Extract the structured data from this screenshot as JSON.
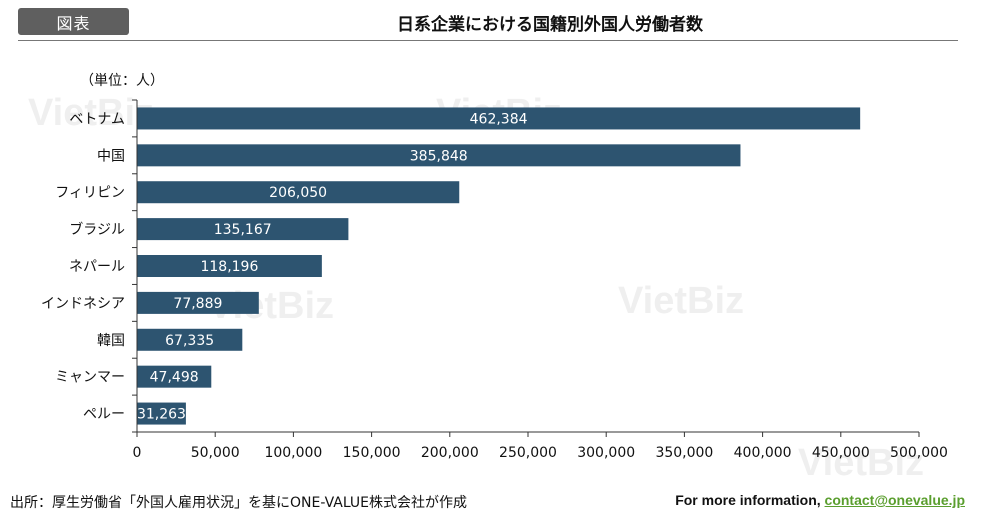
{
  "header": {
    "tag": "図表",
    "title": "日系企業における国籍別外国人労働者数"
  },
  "unit_label": "（単位：人）",
  "watermark": "VietBiz",
  "chart_data": {
    "type": "bar",
    "orientation": "horizontal",
    "categories": [
      "ベトナム",
      "中国",
      "フィリピン",
      "ブラジル",
      "ネパール",
      "インドネシア",
      "韓国",
      "ミャンマー",
      "ペルー"
    ],
    "values": [
      462384,
      385848,
      206050,
      135167,
      118196,
      77889,
      67335,
      47498,
      31263
    ],
    "data_labels": [
      "462,384",
      "385,848",
      "206,050",
      "135,167",
      "118,196",
      "77,889",
      "67,335",
      "47,498",
      "31,263"
    ],
    "xlim": [
      0,
      500000
    ],
    "ticks": [
      0,
      50000,
      100000,
      150000,
      200000,
      250000,
      300000,
      350000,
      400000,
      450000,
      500000
    ],
    "tick_labels": [
      "0",
      "50,000",
      "100,000",
      "150,000",
      "200,000",
      "250,000",
      "300,000",
      "350,000",
      "400,000",
      "450,000",
      "500,000"
    ],
    "bar_color": "#2d5470",
    "grid": false
  },
  "footer": {
    "source": "出所：厚生労働省「外国人雇用状況」を基にONE-VALUE株式会社が作成",
    "more_prefix": "For more information, ",
    "contact": "contact@onevalue.jp"
  },
  "colors": {
    "link": "#5a9e2e",
    "tag_bg": "#5f5f5f"
  }
}
